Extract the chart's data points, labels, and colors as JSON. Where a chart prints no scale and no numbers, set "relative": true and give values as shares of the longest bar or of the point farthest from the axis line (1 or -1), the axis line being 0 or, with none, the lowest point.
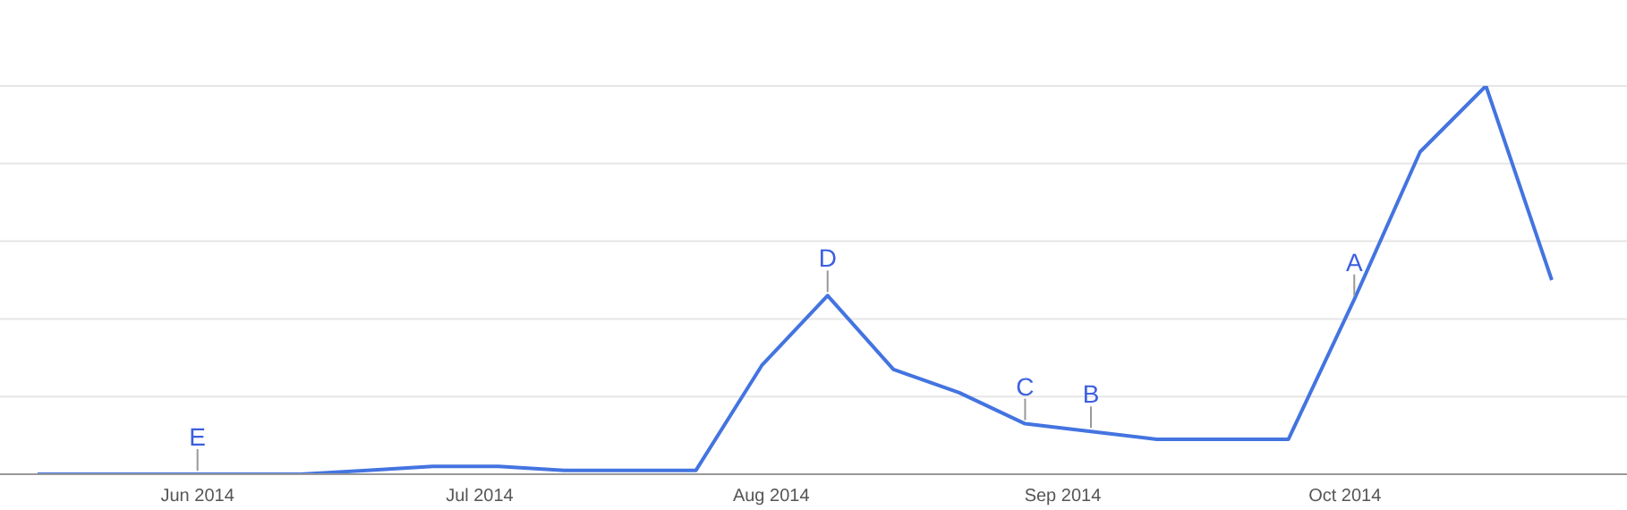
{
  "chart_data": {
    "type": "line",
    "relative": true,
    "grid": "y",
    "legend": false,
    "marker": "none",
    "line_style": "solid",
    "x": [
      "2014-05-15",
      "2014-05-22",
      "2014-05-29",
      "2014-06-05",
      "2014-06-12",
      "2014-06-19",
      "2014-06-26",
      "2014-07-03",
      "2014-07-10",
      "2014-07-17",
      "2014-07-24",
      "2014-07-31",
      "2014-08-07",
      "2014-08-14",
      "2014-08-21",
      "2014-08-28",
      "2014-09-04",
      "2014-09-11",
      "2014-09-18",
      "2014-09-25",
      "2014-10-02",
      "2014-10-09",
      "2014-10-16",
      "2014-10-23"
    ],
    "series": [
      {
        "color": "#4374e0",
        "values": [
          0,
          0,
          0,
          0,
          0,
          0.01,
          0.02,
          0.02,
          0.01,
          0.01,
          0.01,
          0.28,
          0.46,
          0.27,
          0.21,
          0.13,
          0.11,
          0.09,
          0.09,
          0.09,
          0.45,
          0.83,
          1,
          0.5
        ]
      }
    ],
    "xlim": [
      "2014-05-11",
      "2014-10-31"
    ],
    "xticks": [
      {
        "value": "2014-06-01",
        "label": "Jun 2014"
      },
      {
        "value": "2014-07-01",
        "label": "Jul 2014"
      },
      {
        "value": "2014-08-01",
        "label": "Aug 2014"
      },
      {
        "value": "2014-09-01",
        "label": "Sep 2014"
      },
      {
        "value": "2014-10-01",
        "label": "Oct 2014"
      }
    ],
    "annotations": [
      {
        "text": "E",
        "x": "2014-06-01",
        "y": 0
      },
      {
        "text": "D",
        "x": "2014-08-07",
        "y": 0.46
      },
      {
        "text": "C",
        "x": "2014-08-28",
        "y": 0.13
      },
      {
        "text": "B",
        "x": "2014-09-04",
        "y": 0.11
      },
      {
        "text": "A",
        "x": "2014-10-02",
        "y": 0.45
      }
    ]
  }
}
